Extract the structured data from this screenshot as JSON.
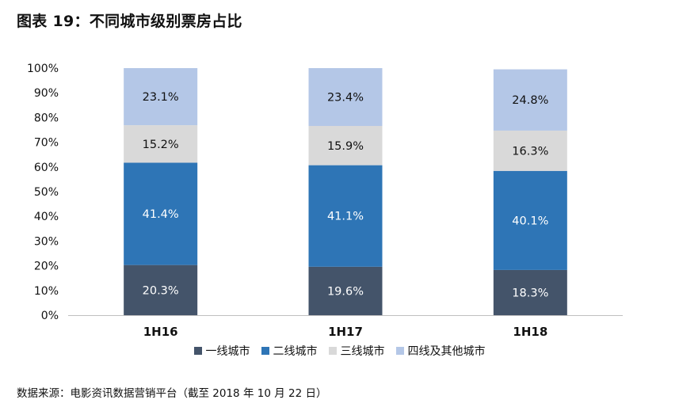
{
  "title": "图表 19：不同城市级别票房占比",
  "source": "数据来源：电影资讯数据营销平台（截至 2018 年 10 月 22 日）",
  "chart_data": {
    "type": "bar",
    "stacked": true,
    "categories": [
      "1H16",
      "1H17",
      "1H18"
    ],
    "ylim": [
      0,
      100
    ],
    "yticks": [
      "0%",
      "10%",
      "20%",
      "30%",
      "40%",
      "50%",
      "60%",
      "70%",
      "80%",
      "90%",
      "100%"
    ],
    "legend_position": "bottom",
    "series": [
      {
        "name": "一线城市",
        "color": "#44546A",
        "label_color": "#ffffff",
        "values": [
          20.3,
          19.6,
          18.3
        ],
        "labels": [
          "20.3%",
          "19.6%",
          "18.3%"
        ]
      },
      {
        "name": "二线城市",
        "color": "#2E75B6",
        "label_color": "#ffffff",
        "values": [
          41.4,
          41.1,
          40.1
        ],
        "labels": [
          "41.4%",
          "41.1%",
          "40.1%"
        ]
      },
      {
        "name": "三线城市",
        "color": "#D9D9D9",
        "label_color": "#111111",
        "values": [
          15.2,
          15.9,
          16.3
        ],
        "labels": [
          "15.2%",
          "15.9%",
          "16.3%"
        ]
      },
      {
        "name": "四线及其他城市",
        "color": "#B4C7E7",
        "label_color": "#111111",
        "values": [
          23.1,
          23.4,
          24.8
        ],
        "labels": [
          "23.1%",
          "23.4%",
          "24.8%"
        ]
      }
    ]
  }
}
